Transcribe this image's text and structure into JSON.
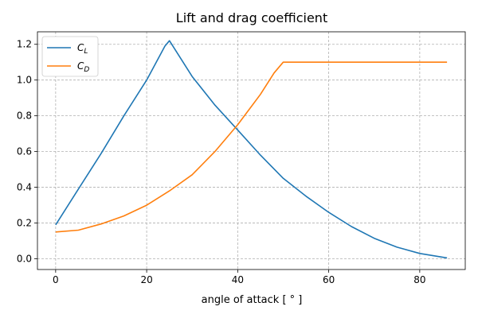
{
  "chart_data": {
    "type": "line",
    "title": "Lift and drag coefficient",
    "xlabel": "angle of attack [ ° ]",
    "ylabel": "",
    "xlim": [
      -4,
      90
    ],
    "ylim": [
      -0.06,
      1.27
    ],
    "xticks": [
      0,
      20,
      40,
      60,
      80
    ],
    "yticks": [
      0.0,
      0.2,
      0.4,
      0.6,
      0.8,
      1.0,
      1.2
    ],
    "xtick_labels": [
      "0",
      "20",
      "40",
      "60",
      "80"
    ],
    "ytick_labels": [
      "0.0",
      "0.2",
      "0.4",
      "0.6",
      "0.8",
      "1.0",
      "1.2"
    ],
    "grid": true,
    "legend_position": "top-left",
    "series": [
      {
        "name": "C",
        "subscript": "L",
        "color": "#1f77b4",
        "x": [
          0,
          5,
          10,
          15,
          20,
          24,
          25,
          30,
          35,
          40,
          45,
          50,
          55,
          60,
          65,
          70,
          75,
          80,
          86
        ],
        "y": [
          0.19,
          0.39,
          0.59,
          0.8,
          1.0,
          1.19,
          1.22,
          1.02,
          0.86,
          0.72,
          0.58,
          0.45,
          0.35,
          0.26,
          0.18,
          0.115,
          0.065,
          0.03,
          0.005
        ]
      },
      {
        "name": "C",
        "subscript": "D",
        "color": "#ff7f0e",
        "x": [
          0,
          5,
          10,
          15,
          20,
          25,
          30,
          35,
          40,
          45,
          48,
          50,
          55,
          60,
          70,
          80,
          86
        ],
        "y": [
          0.15,
          0.16,
          0.195,
          0.24,
          0.3,
          0.38,
          0.47,
          0.6,
          0.75,
          0.92,
          1.04,
          1.1,
          1.1,
          1.1,
          1.1,
          1.1,
          1.1
        ]
      }
    ]
  }
}
